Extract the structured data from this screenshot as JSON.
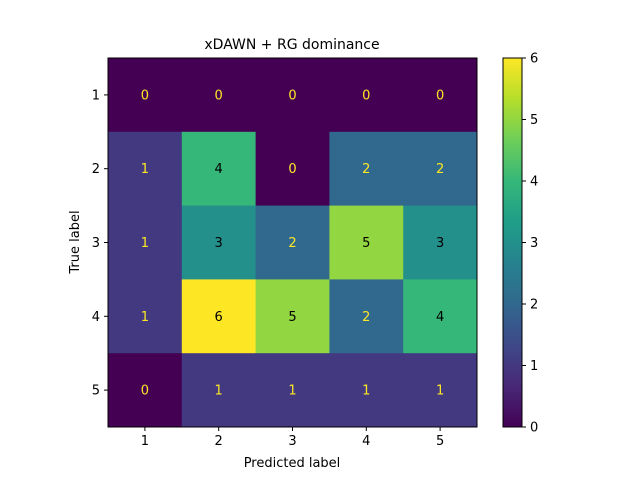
{
  "chart_data": {
    "type": "heatmap",
    "title": "xDAWN + RG dominance",
    "xlabel": "Predicted label",
    "ylabel": "True label",
    "x_categories": [
      "1",
      "2",
      "3",
      "4",
      "5"
    ],
    "y_categories": [
      "1",
      "2",
      "3",
      "4",
      "5"
    ],
    "values": [
      [
        0,
        0,
        0,
        0,
        0
      ],
      [
        1,
        4,
        0,
        2,
        2
      ],
      [
        1,
        3,
        2,
        5,
        3
      ],
      [
        1,
        6,
        5,
        2,
        4
      ],
      [
        0,
        1,
        1,
        1,
        1
      ]
    ],
    "colormap": "viridis",
    "vmin": 0,
    "vmax": 6,
    "colorbar_ticks": [
      "0",
      "1",
      "2",
      "3",
      "4",
      "5",
      "6"
    ],
    "grid": false
  }
}
